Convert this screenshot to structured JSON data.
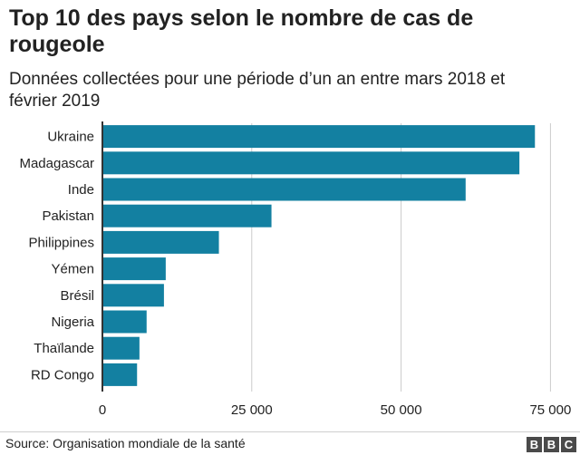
{
  "title": "Top 10 des pays selon le nombre de cas de rougeole",
  "subtitle": "Données collectées pour une période d’un an entre mars 2018 et février 2019",
  "source": "Source: Organisation mondiale de la santé",
  "logo": [
    "B",
    "B",
    "C"
  ],
  "colors": {
    "bar": "#1380a1",
    "grid": "#cbcbcb",
    "axis": "#333333",
    "text": "#222222",
    "logo": "#4a4a4a"
  },
  "chart_data": {
    "type": "bar",
    "orientation": "horizontal",
    "categories": [
      "Ukraine",
      "Madagascar",
      "Inde",
      "Pakistan",
      "Philippines",
      "Yémen",
      "Brésil",
      "Nigeria",
      "Thaïlande",
      "RD Congo"
    ],
    "values": [
      72400,
      69800,
      60800,
      28300,
      19500,
      10600,
      10300,
      7400,
      6200,
      5800
    ],
    "xlim": [
      0,
      76000
    ],
    "xticks": [
      0,
      25000,
      50000,
      75000
    ],
    "xtick_labels": [
      "0",
      "25 000",
      "50 000",
      "75 000"
    ],
    "grid": true,
    "legend": "none"
  }
}
